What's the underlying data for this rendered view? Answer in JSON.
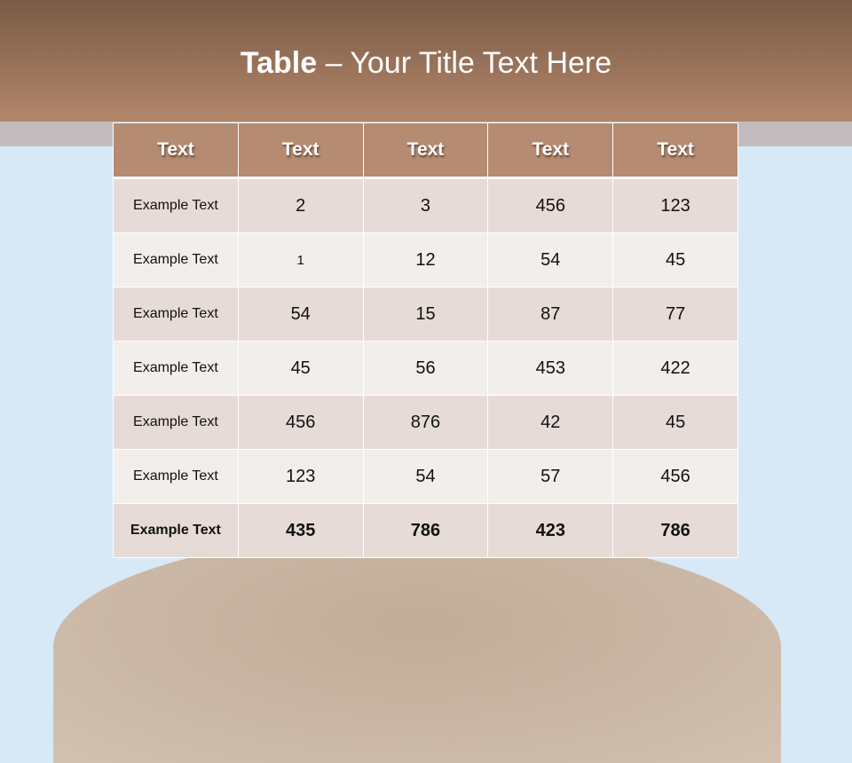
{
  "title": {
    "bold": "Table",
    "rest": " – Your Title Text Here"
  },
  "table": {
    "headers": [
      "Text",
      "Text",
      "Text",
      "Text",
      "Text"
    ],
    "rows": [
      [
        "Example Text",
        "2",
        "3",
        "456",
        "123"
      ],
      [
        "Example Text",
        "1",
        "12",
        "54",
        "45"
      ],
      [
        "Example Text",
        "54",
        "15",
        "87",
        "77"
      ],
      [
        "Example Text",
        "45",
        "56",
        "453",
        "422"
      ],
      [
        "Example Text",
        "456",
        "876",
        "42",
        "45"
      ],
      [
        "Example Text",
        "123",
        "54",
        "57",
        "456"
      ],
      [
        "Example Text",
        "435",
        "786",
        "423",
        "786"
      ]
    ]
  },
  "colors": {
    "header_band": "#9a7259",
    "table_header": "#b58b72",
    "background": "#d7e8f6"
  }
}
